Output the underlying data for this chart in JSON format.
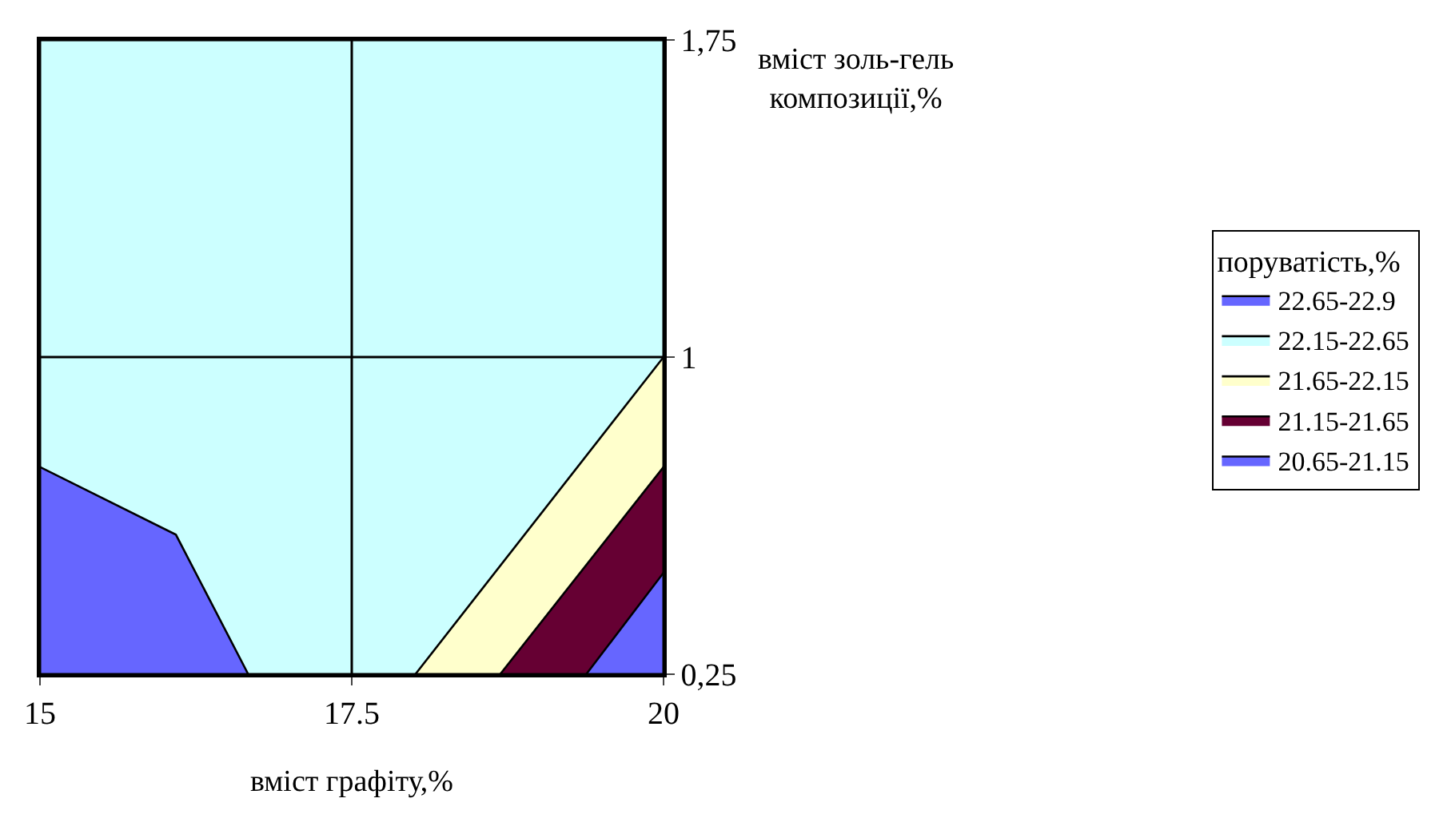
{
  "chart_data": {
    "type": "area",
    "xlabel": "вміст графіту,%",
    "ylabel": "вміст золь-гель композиції,%",
    "legend_title": "поруватість,%",
    "xlim": [
      15,
      20
    ],
    "xticks": [
      15,
      17.5,
      20
    ],
    "ylim": [
      0.25,
      1.75
    ],
    "yticks": [
      {
        "value": 0.25,
        "label": "0,25"
      },
      1,
      {
        "value": 1.75,
        "label": "1,75"
      }
    ],
    "series": [
      {
        "name": "22.65-22.9",
        "color": "#6666ff",
        "x": [
          15,
          16.09,
          16.67
        ],
        "values": [
          0.74,
          0.58,
          0.25
        ]
      },
      {
        "name": "22.15-22.65",
        "color": "#ccffff",
        "x": [
          15,
          20
        ],
        "values": [
          1.75,
          1.75
        ]
      },
      {
        "name": "21.65-22.15",
        "color": "#ffffcc",
        "x": [
          18.01,
          20
        ],
        "values": [
          0.25,
          1
        ]
      },
      {
        "name": "21.15-21.65",
        "color": "#660033",
        "x": [
          18.69,
          20
        ],
        "values": [
          0.25,
          0.74
        ]
      },
      {
        "name": "20.65-21.15",
        "color": "#6666ff",
        "x": [
          19.38,
          20
        ],
        "values": [
          0.25,
          0.49
        ]
      }
    ],
    "grid": true,
    "legend": "right"
  }
}
